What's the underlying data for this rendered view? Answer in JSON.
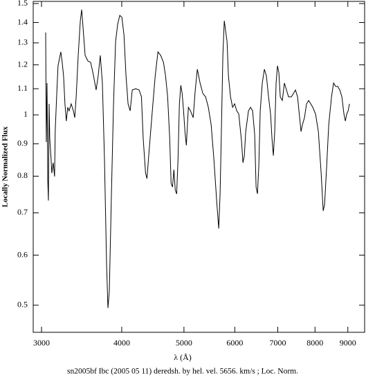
{
  "chart_data": {
    "type": "line",
    "caption": "sn2005bf Ibc (2005 05 11) deredsh. by hel. vel.  5656. km/s ;  Loc. Norm.",
    "x_label": "λ (Å)",
    "y_label": "Locally Normalized Flux",
    "xscale": "log",
    "yscale": "log",
    "color": "#000000",
    "xlim": [
      2912,
      9558
    ],
    "ylim": [
      0.453,
      1.512
    ],
    "xticks": [
      3000,
      4000,
      5000,
      6000,
      7000,
      8000,
      9000
    ],
    "yticks": [
      0.5,
      0.6,
      0.7,
      0.8,
      0.9,
      1,
      1.1,
      1.2,
      1.3,
      1.4,
      1.5
    ],
    "x": [
      3045,
      3052,
      3060,
      3068,
      3075,
      3083,
      3090,
      3105,
      3113,
      3128,
      3144,
      3151,
      3167,
      3183,
      3199,
      3215,
      3231,
      3247,
      3263,
      3279,
      3296,
      3312,
      3337,
      3363,
      3380,
      3397,
      3422,
      3448,
      3465,
      3482,
      3508,
      3543,
      3578,
      3613,
      3649,
      3676,
      3704,
      3732,
      3760,
      3788,
      3807,
      3826,
      3855,
      3884,
      3913,
      3942,
      3972,
      4002,
      4032,
      4062,
      4092,
      4123,
      4154,
      4206,
      4258,
      4293,
      4320,
      4357,
      4379,
      4411,
      4455,
      4510,
      4555,
      4600,
      4646,
      4681,
      4716,
      4751,
      4775,
      4799,
      4823,
      4847,
      4871,
      4895,
      4919,
      4944,
      4968,
      4993,
      5018,
      5043,
      5080,
      5118,
      5169,
      5207,
      5246,
      5298,
      5351,
      5404,
      5457,
      5512,
      5567,
      5622,
      5664,
      5692,
      5721,
      5749,
      5778,
      5807,
      5836,
      5865,
      5909,
      5953,
      5997,
      6042,
      6087,
      6148,
      6178,
      6209,
      6240,
      6302,
      6349,
      6396,
      6444,
      6476,
      6508,
      6540,
      6573,
      6622,
      6672,
      6721,
      6772,
      6822,
      6856,
      6890,
      6924,
      6958,
      6993,
      7028,
      7063,
      7115,
      7169,
      7222,
      7276,
      7349,
      7404,
      7459,
      7515,
      7571,
      7609,
      7647,
      7704,
      7761,
      7819,
      7878,
      7937,
      8016,
      8097,
      8178,
      8239,
      8280,
      8342,
      8404,
      8488,
      8551,
      8615,
      8679,
      8744,
      8810,
      8875,
      8920,
      8964,
      9009,
      9053
    ],
    "values": [
      1.35,
      0.906,
      1.123,
      0.789,
      0.732,
      1.041,
      0.918,
      0.851,
      0.809,
      0.84,
      0.799,
      0.941,
      1.068,
      1.196,
      1.226,
      1.258,
      1.211,
      1.152,
      1.041,
      0.978,
      1.028,
      1.015,
      1.041,
      1.015,
      0.99,
      1.068,
      1.242,
      1.409,
      1.467,
      1.374,
      1.242,
      1.217,
      1.211,
      1.157,
      1.095,
      1.152,
      1.242,
      1.123,
      0.851,
      0.583,
      0.495,
      0.527,
      0.75,
      1.041,
      1.306,
      1.391,
      1.437,
      1.427,
      1.34,
      1.152,
      1.041,
      1.015,
      1.095,
      1.1,
      1.095,
      1.068,
      0.918,
      0.809,
      0.793,
      0.873,
      0.99,
      1.152,
      1.258,
      1.242,
      1.211,
      1.152,
      1.068,
      0.918,
      0.779,
      0.769,
      0.819,
      0.76,
      0.75,
      0.851,
      1.041,
      1.114,
      1.081,
      1.015,
      0.941,
      0.895,
      1.028,
      1.015,
      0.99,
      1.095,
      1.181,
      1.123,
      1.081,
      1.068,
      1.028,
      0.965,
      0.851,
      0.732,
      0.661,
      0.75,
      0.965,
      1.242,
      1.409,
      1.357,
      1.306,
      1.152,
      1.068,
      1.028,
      1.041,
      1.015,
      1.003,
      0.906,
      0.84,
      0.862,
      0.941,
      1.015,
      1.028,
      1.015,
      0.93,
      0.769,
      0.75,
      0.83,
      1.015,
      1.123,
      1.181,
      1.152,
      1.068,
      1.003,
      0.918,
      0.862,
      0.941,
      1.123,
      1.196,
      1.166,
      1.068,
      1.054,
      1.123,
      1.095,
      1.068,
      1.068,
      1.081,
      1.095,
      1.068,
      0.99,
      0.941,
      0.965,
      0.99,
      1.041,
      1.054,
      1.041,
      1.028,
      1.003,
      0.941,
      0.809,
      0.705,
      0.722,
      0.83,
      0.965,
      1.068,
      1.123,
      1.109,
      1.109,
      1.095,
      1.068,
      1.003,
      0.978,
      1.003,
      1.015,
      1.041
    ]
  }
}
